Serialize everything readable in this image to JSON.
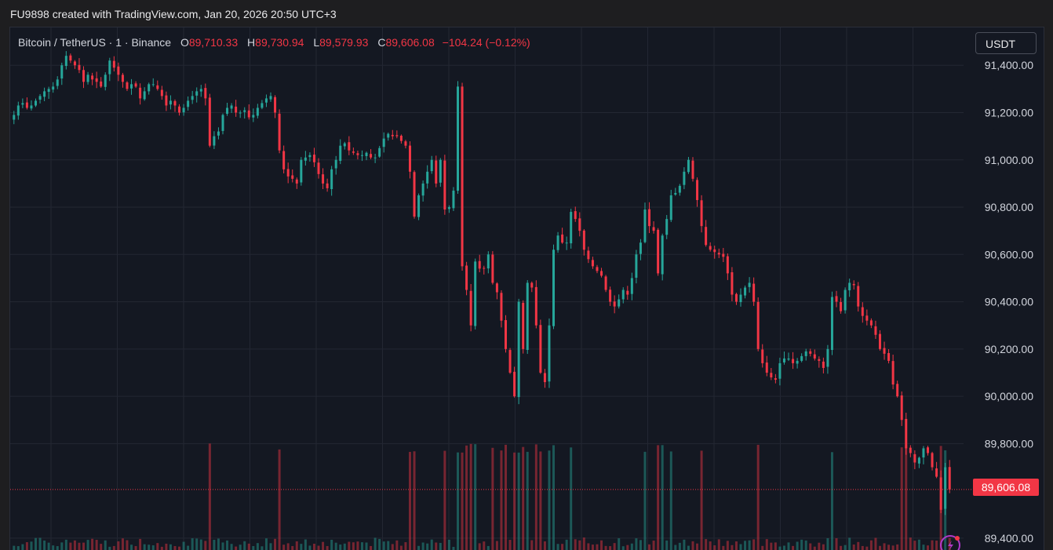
{
  "caption": "FU9898 created with TradingView.com, Jan 20, 2026 20:50 UTC+3",
  "legend": {
    "symbol": "Bitcoin / TetherUS · 1 · Binance",
    "open_label": "O",
    "open": "89,710.33",
    "high_label": "H",
    "high": "89,730.94",
    "low_label": "L",
    "low": "89,579.93",
    "close_label": "C",
    "close": "89,606.08",
    "change": "−104.24 (−0.12%)"
  },
  "currency_button": "USDT",
  "last_price_badge": "89,606.08",
  "colors": {
    "up": "#26a69a",
    "down": "#f23645",
    "background": "#141822",
    "grid": "#232733"
  },
  "chart_data": {
    "type": "candlestick",
    "last_price": 89606.08,
    "ylim": [
      89350,
      91560
    ],
    "y_ticks": [
      89400,
      89800,
      90000,
      90200,
      90400,
      90600,
      90800,
      91000,
      91200,
      91400
    ],
    "y_tick_labels": [
      "89,400.00",
      "89,800.00",
      "90,000.00",
      "90,200.00",
      "90,400.00",
      "90,600.00",
      "90,800.00",
      "91,000.00",
      "91,200.00",
      "91,400.00"
    ],
    "closes": [
      91190,
      91230,
      91240,
      91220,
      91230,
      91250,
      91270,
      91290,
      91300,
      91310,
      91340,
      91400,
      91440,
      91420,
      91400,
      91380,
      91330,
      91360,
      91340,
      91330,
      91310,
      91360,
      91420,
      91390,
      91360,
      91330,
      91300,
      91320,
      91310,
      91260,
      91290,
      91320,
      91320,
      91300,
      91270,
      91230,
      91250,
      91230,
      91200,
      91220,
      91250,
      91270,
      91290,
      91300,
      91260,
      91060,
      91100,
      91120,
      91190,
      91220,
      91230,
      91200,
      91200,
      91210,
      91180,
      91190,
      91220,
      91240,
      91260,
      91270,
      91200,
      91040,
      90960,
      90930,
      90920,
      90900,
      91000,
      91010,
      91020,
      90990,
      90940,
      90900,
      90880,
      90960,
      91000,
      91060,
      91070,
      91040,
      91030,
      91020,
      91020,
      91030,
      91010,
      91010,
      91050,
      91090,
      91110,
      91100,
      91100,
      91080,
      91060,
      90950,
      90760,
      90850,
      90900,
      90950,
      91000,
      90900,
      91000,
      90790,
      90800,
      90870,
      91310,
      90550,
      90450,
      90300,
      90570,
      90540,
      90540,
      90600,
      90480,
      90440,
      90320,
      90200,
      90100,
      90000,
      90400,
      90200,
      90480,
      90460,
      90300,
      90100,
      90060,
      90300,
      90620,
      90680,
      90650,
      90650,
      90780,
      90750,
      90700,
      90620,
      90580,
      90550,
      90530,
      90510,
      90450,
      90400,
      90380,
      90410,
      90450,
      90430,
      90500,
      90600,
      90650,
      90790,
      90720,
      90700,
      90520,
      90680,
      90750,
      90850,
      90860,
      90890,
      90950,
      91000,
      90920,
      90830,
      90720,
      90640,
      90620,
      90610,
      90600,
      90590,
      90520,
      90430,
      90400,
      90430,
      90460,
      90480,
      90400,
      90200,
      90140,
      90100,
      90080,
      90070,
      90140,
      90160,
      90160,
      90140,
      90150,
      90170,
      90190,
      90180,
      90160,
      90150,
      90120,
      90200,
      90420,
      90400,
      90360,
      90450,
      90480,
      90470,
      90380,
      90340,
      90320,
      90300,
      90260,
      90200,
      90180,
      90150,
      90050,
      90000,
      89900,
      89780,
      89760,
      89720,
      89740,
      89780,
      89760,
      89700,
      89660,
      89520,
      89700,
      89606
    ]
  }
}
